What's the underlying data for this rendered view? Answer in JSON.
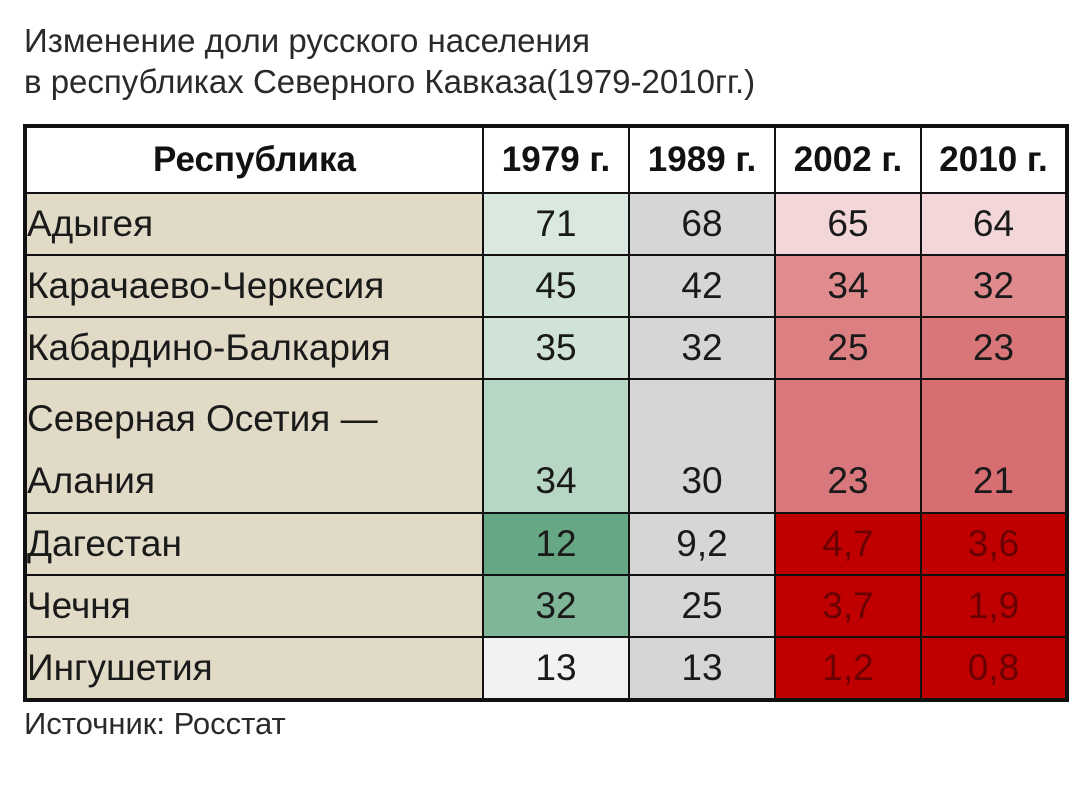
{
  "title_line1": "Изменение доли русского населения",
  "title_line2": "в республиках Северного Кавказа(1979-2010гг.)",
  "source": "Источник: Росстат",
  "colors": {
    "region_bg": "#e0dac6",
    "green_scale": [
      "#f2f2f2",
      "#d9e9df",
      "#cfe3d6",
      "#b7d7c4",
      "#7fb698",
      "#65a883"
    ],
    "gray": "#d6d6d6",
    "red_scale": [
      "#f2d6d8",
      "#e08c8f",
      "#d66e72",
      "#c00000"
    ]
  },
  "chart_data": {
    "type": "table",
    "columns": [
      "Республика",
      "1979 г.",
      "1989 г.",
      "2002 г.",
      "2010 г."
    ],
    "rows": [
      {
        "region": "Адыгея",
        "values": [
          "71",
          "68",
          "65",
          "64"
        ],
        "bg": [
          "#d9e9df",
          "#d6d6d6",
          "#f2d6d8",
          "#f2d6d8"
        ]
      },
      {
        "region": "Карачаево-Черкесия",
        "values": [
          "45",
          "42",
          "34",
          "32"
        ],
        "bg": [
          "#cfe3d6",
          "#d6d6d6",
          "#e08c8f",
          "#df8a8d"
        ]
      },
      {
        "region": "Кабардино-Балкария",
        "values": [
          "35",
          "32",
          "25",
          "23"
        ],
        "bg": [
          "#cfe3d6",
          "#d6d6d6",
          "#dc7f83",
          "#d8767a"
        ]
      },
      {
        "region": "Северная Осетия — Алания",
        "values": [
          "34",
          "30",
          "23",
          "21"
        ],
        "bg": [
          "#b7d7c4",
          "#d6d6d6",
          "#d8787c",
          "#d66e72"
        ]
      },
      {
        "region": "Дагестан",
        "values": [
          "12",
          "9,2",
          "4,7",
          "3,6"
        ],
        "bg": [
          "#65a883",
          "#d6d6d6",
          "#c00000",
          "#c00000"
        ]
      },
      {
        "region": "Чечня",
        "values": [
          "32",
          "25",
          "3,7",
          "1,9"
        ],
        "bg": [
          "#7fb698",
          "#d6d6d6",
          "#c00000",
          "#c00000"
        ]
      },
      {
        "region": "Ингушетия",
        "values": [
          "13",
          "13",
          "1,2",
          "0,8"
        ],
        "bg": [
          "#f2f2f2",
          "#d6d6d6",
          "#c00000",
          "#c00000"
        ]
      }
    ]
  }
}
